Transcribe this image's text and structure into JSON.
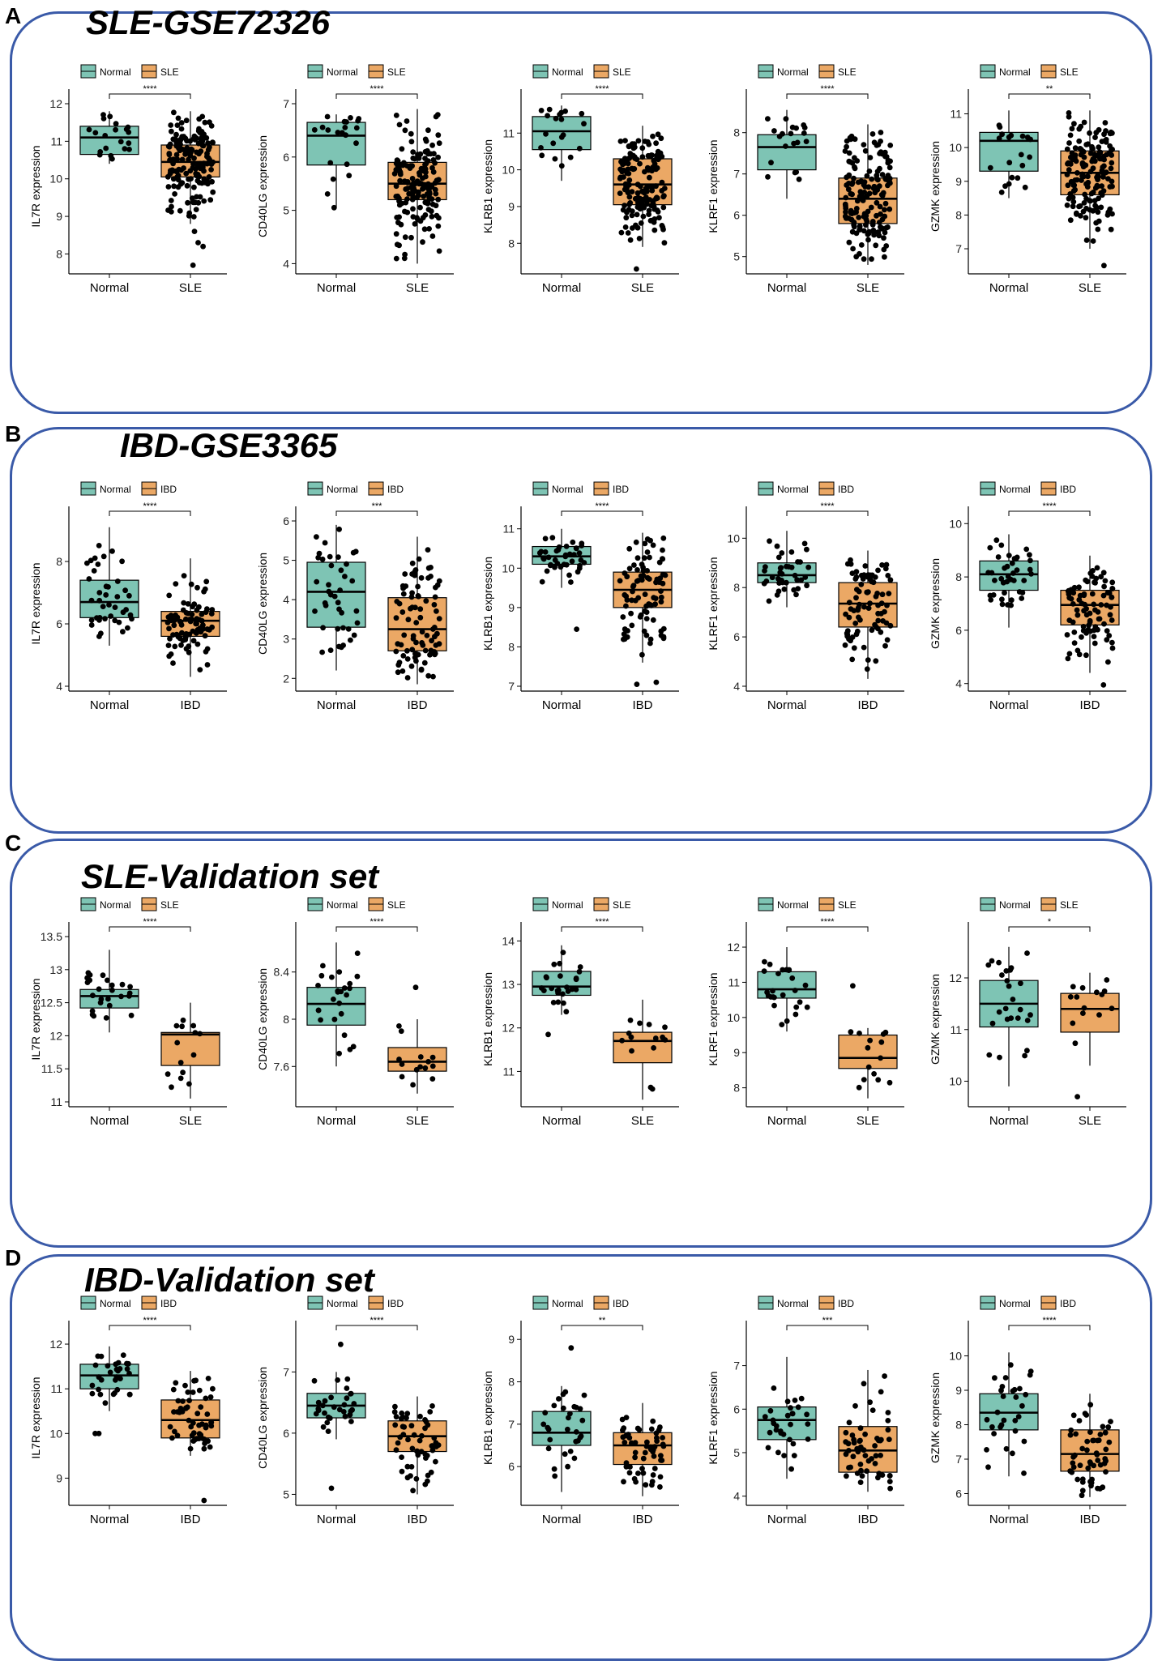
{
  "colors": {
    "normal": "#7ec4b4",
    "disease": "#eba865",
    "border": "#3a5aa8"
  },
  "panels": [
    {
      "letter": "A",
      "title": "SLE-GSE72326",
      "group2": "SLE",
      "plots": [
        {
          "gene": "IL7R",
          "ylabel": "IL7R expression",
          "ylim": [
            7.6,
            12.0
          ],
          "ticks": [
            8,
            9,
            10,
            11,
            12
          ],
          "sig": "****",
          "box1": [
            10.4,
            10.65,
            11.1,
            11.4,
            11.8
          ],
          "box2": [
            8.8,
            10.05,
            10.45,
            10.9,
            11.8
          ],
          "n1": 20,
          "n2": 160,
          "pts1": [],
          "pts2": [
            8.6,
            8.3,
            8.2,
            7.7
          ]
        },
        {
          "gene": "CD40LG",
          "ylabel": "CD40LG expression",
          "ylim": [
            3.9,
            7.0
          ],
          "ticks": [
            4,
            5,
            6,
            7
          ],
          "sig": "****",
          "box1": [
            5.05,
            5.85,
            6.4,
            6.65,
            6.8
          ],
          "box2": [
            4.0,
            5.2,
            5.5,
            5.9,
            6.9
          ],
          "n1": 20,
          "n2": 160,
          "pts1": [
            5.05
          ],
          "pts2": []
        },
        {
          "gene": "KLRB1",
          "ylabel": "KLRB1 expression",
          "ylim": [
            7.3,
            11.8
          ],
          "ticks": [
            8,
            9,
            10,
            11
          ],
          "sig": "****",
          "box1": [
            9.7,
            10.55,
            11.05,
            11.45,
            11.75
          ],
          "box2": [
            7.9,
            9.05,
            9.6,
            10.3,
            11.2
          ],
          "n1": 20,
          "n2": 160,
          "pts1": [],
          "pts2": [
            7.3
          ]
        },
        {
          "gene": "KLRF1",
          "ylabel": "KLRF1 expression",
          "ylim": [
            4.7,
            8.7
          ],
          "ticks": [
            5,
            6,
            7,
            8
          ],
          "sig": "****",
          "box1": [
            6.4,
            7.1,
            7.65,
            7.95,
            8.55
          ],
          "box2": [
            4.8,
            5.8,
            6.4,
            6.9,
            8.2
          ],
          "n1": 20,
          "n2": 160,
          "pts1": [],
          "pts2": []
        },
        {
          "gene": "GZMK",
          "ylabel": "GZMK expression",
          "ylim": [
            6.4,
            11.3
          ],
          "ticks": [
            7,
            8,
            9,
            10,
            11
          ],
          "sig": "**",
          "box1": [
            8.5,
            9.3,
            10.2,
            10.45,
            11.1
          ],
          "box2": [
            7.0,
            8.6,
            9.25,
            9.9,
            11.1
          ],
          "n1": 20,
          "n2": 160,
          "pts1": [],
          "pts2": [
            6.5
          ]
        }
      ]
    },
    {
      "letter": "B",
      "title": "IBD-GSE3365",
      "group2": "IBD",
      "plots": [
        {
          "gene": "IL7R",
          "ylabel": "IL7R expression",
          "ylim": [
            4.0,
            9.3
          ],
          "ticks": [
            4,
            6,
            8
          ],
          "sig": "****",
          "box1": [
            5.3,
            6.2,
            6.7,
            7.4,
            9.1
          ],
          "box2": [
            4.3,
            5.6,
            6.1,
            6.4,
            8.1
          ],
          "n1": 40,
          "n2": 85,
          "pts1": [],
          "pts2": []
        },
        {
          "gene": "CD40LG",
          "ylabel": "CD40LG expression",
          "ylim": [
            1.8,
            6.0
          ],
          "ticks": [
            2,
            3,
            4,
            5,
            6
          ],
          "sig": "***",
          "box1": [
            2.2,
            3.3,
            4.2,
            4.95,
            5.9
          ],
          "box2": [
            1.85,
            2.7,
            3.25,
            4.05,
            5.6
          ],
          "n1": 40,
          "n2": 85,
          "pts1": [],
          "pts2": []
        },
        {
          "gene": "KLRB1",
          "ylabel": "KLRB1 expression",
          "ylim": [
            7.0,
            11.2
          ],
          "ticks": [
            7,
            8,
            9,
            10,
            11
          ],
          "sig": "****",
          "box1": [
            9.5,
            10.1,
            10.3,
            10.55,
            11.0
          ],
          "box2": [
            7.6,
            9.0,
            9.45,
            9.9,
            10.9
          ],
          "n1": 40,
          "n2": 85,
          "pts1": [
            8.45
          ],
          "pts2": [
            7.1,
            7.05
          ]
        },
        {
          "gene": "KLRF1",
          "ylabel": "KLRF1 expression",
          "ylim": [
            4.0,
            10.7
          ],
          "ticks": [
            4,
            6,
            8,
            10
          ],
          "sig": "****",
          "box1": [
            7.2,
            8.2,
            8.5,
            9.0,
            10.3
          ],
          "box2": [
            4.3,
            6.4,
            7.35,
            8.2,
            9.5
          ],
          "n1": 40,
          "n2": 85,
          "pts1": [],
          "pts2": []
        },
        {
          "gene": "GZMK",
          "ylabel": "GZMK expression",
          "ylim": [
            3.9,
            10.1
          ],
          "ticks": [
            4,
            6,
            8,
            10
          ],
          "sig": "****",
          "box1": [
            6.1,
            7.5,
            8.1,
            8.6,
            9.6
          ],
          "box2": [
            4.4,
            6.2,
            6.95,
            7.5,
            8.8
          ],
          "n1": 40,
          "n2": 85,
          "pts1": [],
          "pts2": [
            3.95
          ]
        }
      ]
    },
    {
      "letter": "C",
      "title": "SLE-Validation set",
      "group2": "SLE",
      "plots": [
        {
          "gene": "IL7R",
          "ylabel": "IL7R expression",
          "ylim": [
            11.0,
            13.5
          ],
          "ticks": [
            11.0,
            11.5,
            12.0,
            12.5,
            13.0,
            13.5
          ],
          "sig": "****",
          "box1": [
            12.05,
            12.42,
            12.6,
            12.7,
            13.3
          ],
          "box2": [
            11.05,
            11.55,
            12.02,
            12.05,
            12.5
          ],
          "n1": 25,
          "n2": 14,
          "pts1": [],
          "pts2": []
        },
        {
          "gene": "CD40LG",
          "ylabel": "CD40LG expression",
          "ylim": [
            7.3,
            8.7
          ],
          "ticks": [
            7.6,
            8.0,
            8.4
          ],
          "sig": "****",
          "box1": [
            7.6,
            7.95,
            8.13,
            8.27,
            8.65
          ],
          "box2": [
            7.37,
            7.56,
            7.64,
            7.76,
            8.0
          ],
          "n1": 25,
          "n2": 14,
          "pts1": [],
          "pts2": [
            8.27
          ]
        },
        {
          "gene": "KLRB1",
          "ylabel": "KLRB1 expression",
          "ylim": [
            10.3,
            14.1
          ],
          "ticks": [
            11,
            12,
            13,
            14
          ],
          "sig": "****",
          "box1": [
            12.3,
            12.75,
            12.95,
            13.3,
            13.9
          ],
          "box2": [
            10.35,
            11.2,
            11.7,
            11.9,
            12.65
          ],
          "n1": 25,
          "n2": 14,
          "pts1": [
            11.85
          ],
          "pts2": []
        },
        {
          "gene": "KLRF1",
          "ylabel": "KLRF1 expression",
          "ylim": [
            7.6,
            12.3
          ],
          "ticks": [
            8,
            9,
            10,
            11,
            12
          ],
          "sig": "****",
          "box1": [
            9.6,
            10.55,
            10.8,
            11.3,
            12.0
          ],
          "box2": [
            7.7,
            8.55,
            8.85,
            9.5,
            9.7
          ],
          "n1": 25,
          "n2": 14,
          "pts1": [],
          "pts2": [
            10.9
          ]
        },
        {
          "gene": "GZMK",
          "ylabel": "GZMK expression",
          "ylim": [
            9.6,
            12.8
          ],
          "ticks": [
            10,
            11,
            12
          ],
          "sig": "*",
          "box1": [
            9.9,
            11.05,
            11.5,
            11.95,
            12.6
          ],
          "box2": [
            10.3,
            10.95,
            11.4,
            11.7,
            12.1
          ],
          "n1": 25,
          "n2": 14,
          "pts1": [],
          "pts2": [
            9.7
          ]
        }
      ]
    },
    {
      "letter": "D",
      "title": "IBD-Validation set",
      "group2": "IBD",
      "plots": [
        {
          "gene": "IL7R",
          "ylabel": "IL7R expression",
          "ylim": [
            8.5,
            12.2
          ],
          "ticks": [
            9,
            10,
            11,
            12
          ],
          "sig": "****",
          "box1": [
            10.5,
            11.0,
            11.3,
            11.55,
            11.95
          ],
          "box2": [
            9.5,
            9.9,
            10.3,
            10.75,
            11.4
          ],
          "n1": 30,
          "n2": 55,
          "pts1": [
            10.0,
            10.0
          ],
          "pts2": [
            8.5
          ]
        },
        {
          "gene": "CD40LG",
          "ylabel": "CD40LG expression",
          "ylim": [
            4.9,
            7.6
          ],
          "ticks": [
            5,
            6,
            7
          ],
          "sig": "****",
          "box1": [
            5.9,
            6.25,
            6.45,
            6.65,
            7.0
          ],
          "box2": [
            5.0,
            5.7,
            5.95,
            6.2,
            6.6
          ],
          "n1": 30,
          "n2": 55,
          "pts1": [
            5.1,
            7.45
          ],
          "pts2": []
        },
        {
          "gene": "KLRB1",
          "ylabel": "KLRB1 expression",
          "ylim": [
            5.2,
            9.1
          ],
          "ticks": [
            6,
            7,
            8,
            9
          ],
          "sig": "**",
          "box1": [
            5.4,
            6.5,
            6.8,
            7.3,
            7.9
          ],
          "box2": [
            5.3,
            6.05,
            6.5,
            6.8,
            7.5
          ],
          "n1": 30,
          "n2": 55,
          "pts1": [
            8.8
          ],
          "pts2": []
        },
        {
          "gene": "KLRF1",
          "ylabel": "KLRF1 expression",
          "ylim": [
            3.9,
            7.7
          ],
          "ticks": [
            4,
            5,
            6,
            7
          ],
          "sig": "***",
          "box1": [
            4.4,
            5.3,
            5.75,
            6.05,
            7.2
          ],
          "box2": [
            4.1,
            4.55,
            5.05,
            5.6,
            6.9
          ],
          "n1": 30,
          "n2": 55,
          "pts1": [],
          "pts2": []
        },
        {
          "gene": "GZMK",
          "ylabel": "GZMK expression",
          "ylim": [
            5.8,
            10.6
          ],
          "ticks": [
            6,
            7,
            8,
            9,
            10
          ],
          "sig": "****",
          "box1": [
            6.5,
            7.85,
            8.35,
            8.9,
            10.1
          ],
          "box2": [
            5.9,
            6.65,
            7.15,
            7.85,
            8.9
          ],
          "n1": 30,
          "n2": 55,
          "pts1": [],
          "pts2": []
        }
      ]
    }
  ],
  "legend_normal": "Normal",
  "group1": "Normal",
  "chart_data": [
    {
      "type": "box",
      "panel": "A",
      "title": "SLE-GSE72326",
      "categories": [
        "Normal",
        "SLE"
      ],
      "series": [
        {
          "name": "IL7R",
          "ylabel": "IL7R expression",
          "median": [
            11.1,
            10.45
          ],
          "q1": [
            10.65,
            10.05
          ],
          "q3": [
            11.4,
            10.9
          ],
          "significance": "****"
        },
        {
          "name": "CD40LG",
          "ylabel": "CD40LG expression",
          "median": [
            6.4,
            5.5
          ],
          "q1": [
            5.85,
            5.2
          ],
          "q3": [
            6.65,
            5.9
          ],
          "significance": "****"
        },
        {
          "name": "KLRB1",
          "ylabel": "KLRB1 expression",
          "median": [
            11.05,
            9.6
          ],
          "q1": [
            10.55,
            9.05
          ],
          "q3": [
            11.45,
            10.3
          ],
          "significance": "****"
        },
        {
          "name": "KLRF1",
          "ylabel": "KLRF1 expression",
          "median": [
            7.65,
            6.4
          ],
          "q1": [
            7.1,
            5.8
          ],
          "q3": [
            7.95,
            6.9
          ],
          "significance": "****"
        },
        {
          "name": "GZMK",
          "ylabel": "GZMK expression",
          "median": [
            10.2,
            9.25
          ],
          "q1": [
            9.3,
            8.6
          ],
          "q3": [
            10.45,
            9.9
          ],
          "significance": "**"
        }
      ]
    },
    {
      "type": "box",
      "panel": "B",
      "title": "IBD-GSE3365",
      "categories": [
        "Normal",
        "IBD"
      ],
      "series": [
        {
          "name": "IL7R",
          "median": [
            6.7,
            6.1
          ],
          "significance": "****"
        },
        {
          "name": "CD40LG",
          "median": [
            4.2,
            3.25
          ],
          "significance": "***"
        },
        {
          "name": "KLRB1",
          "median": [
            10.3,
            9.45
          ],
          "significance": "****"
        },
        {
          "name": "KLRF1",
          "median": [
            8.5,
            7.35
          ],
          "significance": "****"
        },
        {
          "name": "GZMK",
          "median": [
            8.1,
            6.95
          ],
          "significance": "****"
        }
      ]
    },
    {
      "type": "box",
      "panel": "C",
      "title": "SLE-Validation set",
      "categories": [
        "Normal",
        "SLE"
      ],
      "series": [
        {
          "name": "IL7R",
          "median": [
            12.6,
            12.02
          ],
          "significance": "****"
        },
        {
          "name": "CD40LG",
          "median": [
            8.13,
            7.64
          ],
          "significance": "****"
        },
        {
          "name": "KLRB1",
          "median": [
            12.95,
            11.7
          ],
          "significance": "****"
        },
        {
          "name": "KLRF1",
          "median": [
            10.8,
            8.85
          ],
          "significance": "****"
        },
        {
          "name": "GZMK",
          "median": [
            11.5,
            11.4
          ],
          "significance": "*"
        }
      ]
    },
    {
      "type": "box",
      "panel": "D",
      "title": "IBD-Validation set",
      "categories": [
        "Normal",
        "IBD"
      ],
      "series": [
        {
          "name": "IL7R",
          "median": [
            11.3,
            10.3
          ],
          "significance": "****"
        },
        {
          "name": "CD40LG",
          "median": [
            6.45,
            5.95
          ],
          "significance": "****"
        },
        {
          "name": "KLRB1",
          "median": [
            6.8,
            6.5
          ],
          "significance": "**"
        },
        {
          "name": "KLRF1",
          "median": [
            5.75,
            5.05
          ],
          "significance": "***"
        },
        {
          "name": "GZMK",
          "median": [
            8.35,
            7.15
          ],
          "significance": "****"
        }
      ]
    }
  ]
}
